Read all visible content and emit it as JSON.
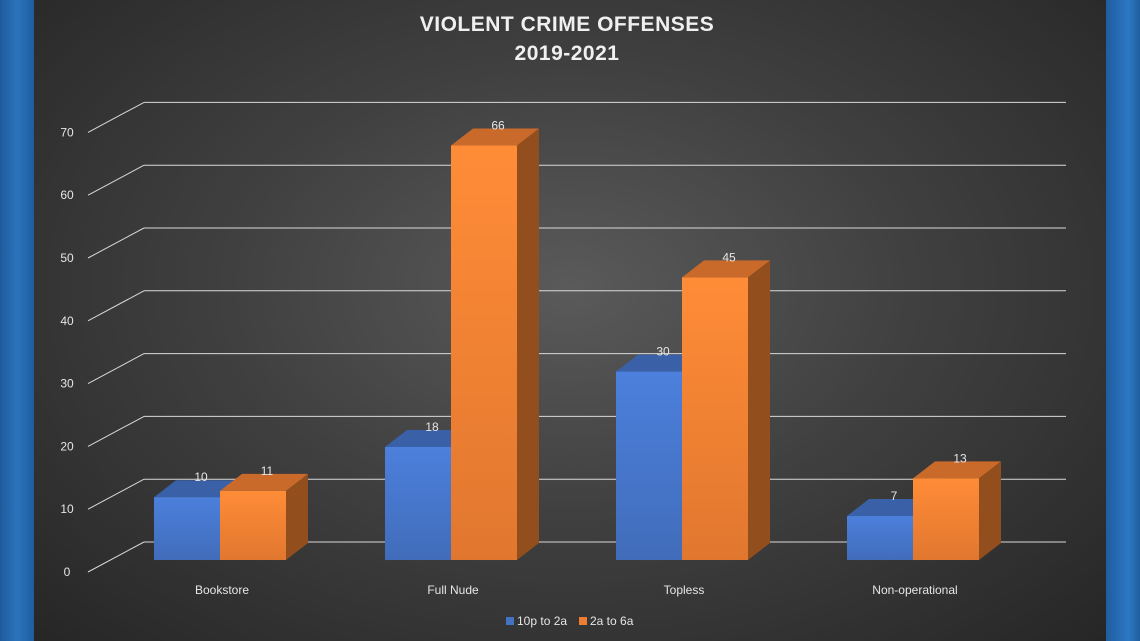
{
  "chart_data": {
    "type": "bar",
    "title": "VIOLENT CRIME OFFENSES",
    "subtitle": "2019-2021",
    "categories": [
      "Bookstore",
      "Full Nude",
      "Topless",
      "Non-operational"
    ],
    "series": [
      {
        "name": "10p to 2a",
        "values": [
          10,
          18,
          30,
          7
        ],
        "color": "#4472c4"
      },
      {
        "name": "2a to 6a",
        "values": [
          11,
          66,
          45,
          13
        ],
        "color": "#ed7d31"
      }
    ],
    "yticks": [
      "0",
      "10",
      "20",
      "30",
      "40",
      "50",
      "60",
      "70"
    ],
    "ylim": [
      0,
      70
    ],
    "grid": true,
    "legend": "bottom",
    "three_d": true
  }
}
